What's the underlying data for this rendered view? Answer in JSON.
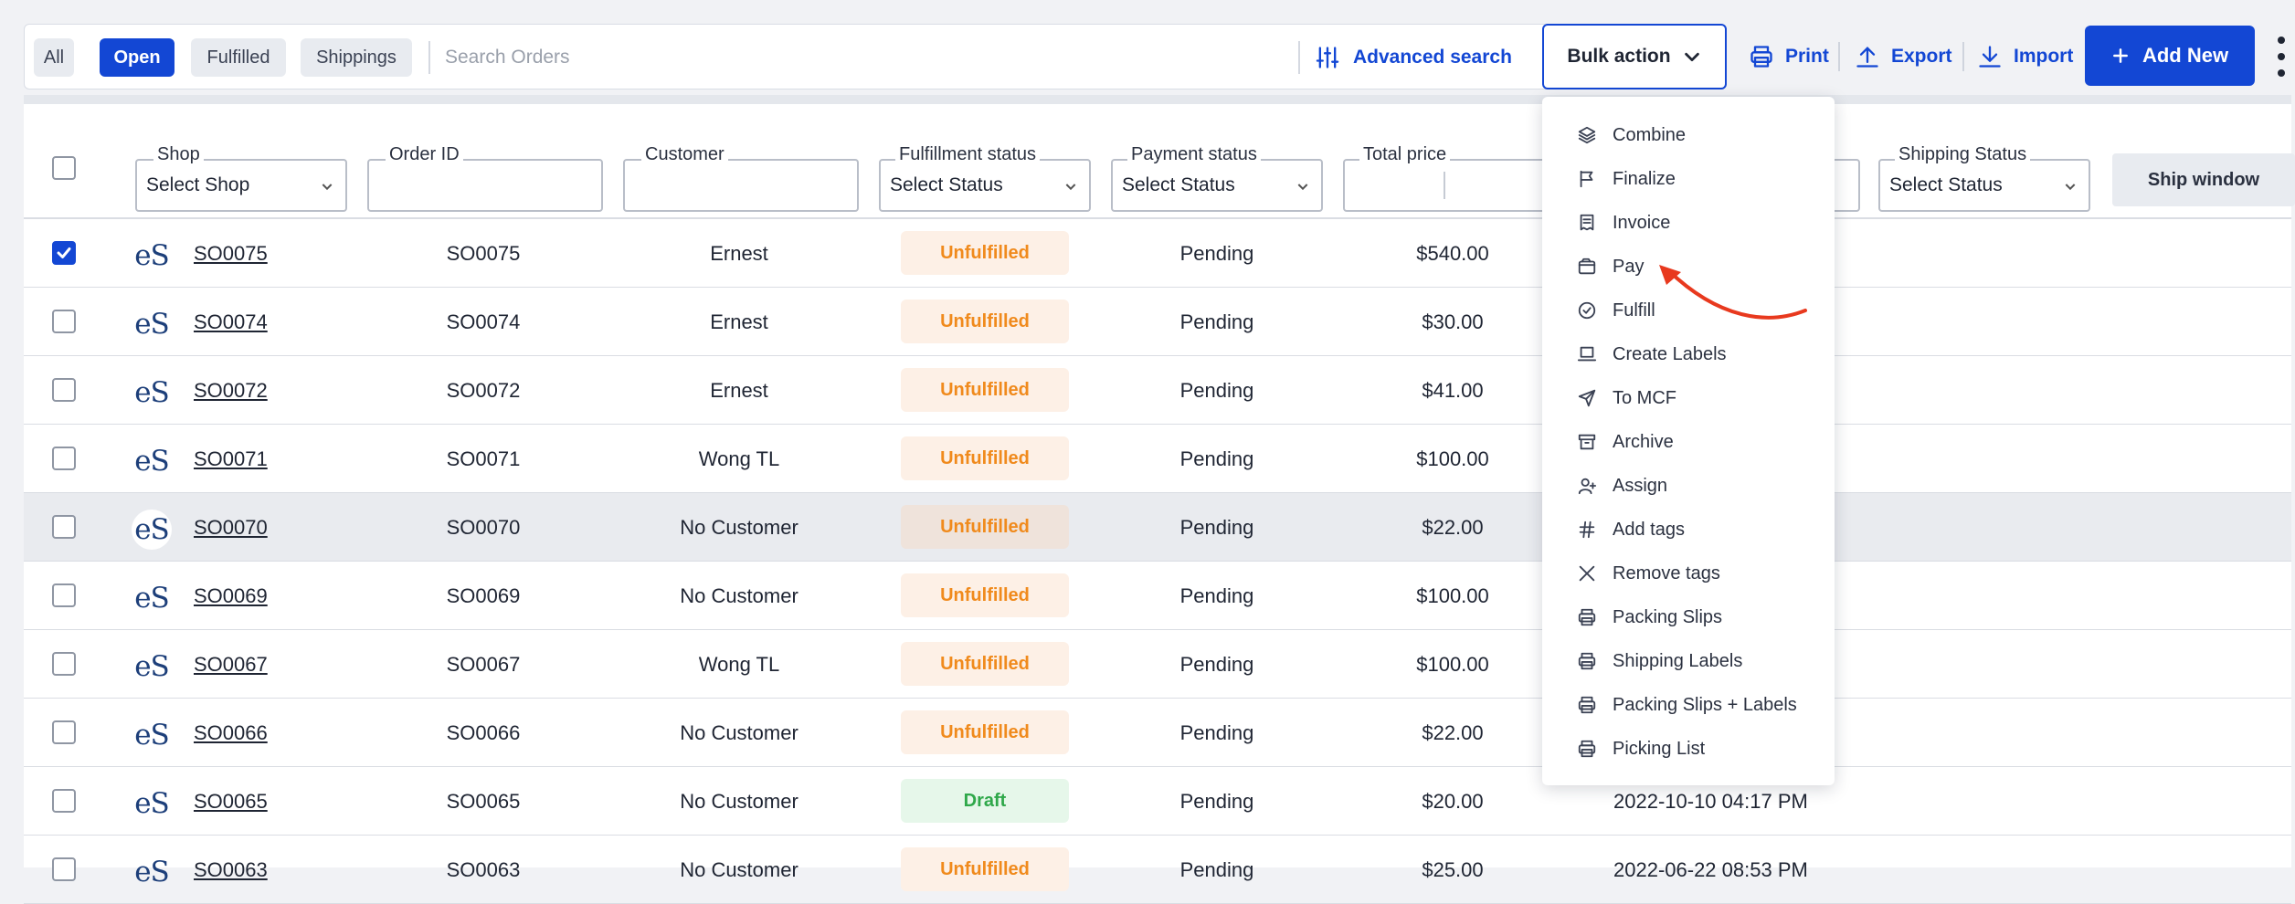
{
  "colors": {
    "accent": "#1347d4",
    "unfulfilled": "#f08a1c",
    "draft": "#2fa84a",
    "annotation": "#e8391e"
  },
  "toolbar": {
    "filters": [
      {
        "label": "All",
        "active": false
      },
      {
        "label": "Open",
        "active": true
      },
      {
        "label": "Fulfilled",
        "active": false
      },
      {
        "label": "Shippings",
        "active": false
      }
    ],
    "search_placeholder": "Search Orders",
    "advanced_search": "Advanced search",
    "bulk_action": "Bulk action",
    "print": "Print",
    "export": "Export",
    "import": "Import",
    "add_new": "Add New"
  },
  "filters": {
    "shop_label": "Shop",
    "shop_value": "Select Shop",
    "order_id_label": "Order ID",
    "customer_label": "Customer",
    "fulfillment_label": "Fulfillment status",
    "fulfillment_value": "Select Status",
    "payment_label": "Payment status",
    "payment_value": "Select Status",
    "total_label": "Total price",
    "shipping_label": "Shipping Status",
    "shipping_value": "Select Status",
    "ship_window": "Ship window"
  },
  "rows": [
    {
      "link": "SO0075",
      "order_id": "SO0075",
      "customer": "Ernest",
      "fulfillment": "Unfulfilled",
      "payment": "Pending",
      "total": "$540.00",
      "date": "",
      "checked": true
    },
    {
      "link": "SO0074",
      "order_id": "SO0074",
      "customer": "Ernest",
      "fulfillment": "Unfulfilled",
      "payment": "Pending",
      "total": "$30.00",
      "date": "",
      "checked": false
    },
    {
      "link": "SO0072",
      "order_id": "SO0072",
      "customer": "Ernest",
      "fulfillment": "Unfulfilled",
      "payment": "Pending",
      "total": "$41.00",
      "date": "",
      "checked": false
    },
    {
      "link": "SO0071",
      "order_id": "SO0071",
      "customer": "Wong TL",
      "fulfillment": "Unfulfilled",
      "payment": "Pending",
      "total": "$100.00",
      "date": "",
      "checked": false
    },
    {
      "link": "SO0070",
      "order_id": "SO0070",
      "customer": "No Customer",
      "fulfillment": "Unfulfilled",
      "payment": "Pending",
      "total": "$22.00",
      "date": "",
      "checked": false
    },
    {
      "link": "SO0069",
      "order_id": "SO0069",
      "customer": "No Customer",
      "fulfillment": "Unfulfilled",
      "payment": "Pending",
      "total": "$100.00",
      "date": "",
      "checked": false
    },
    {
      "link": "SO0067",
      "order_id": "SO0067",
      "customer": "Wong TL",
      "fulfillment": "Unfulfilled",
      "payment": "Pending",
      "total": "$100.00",
      "date": "",
      "checked": false
    },
    {
      "link": "SO0066",
      "order_id": "SO0066",
      "customer": "No Customer",
      "fulfillment": "Unfulfilled",
      "payment": "Pending",
      "total": "$22.00",
      "date": "",
      "checked": false
    },
    {
      "link": "SO0065",
      "order_id": "SO0065",
      "customer": "No Customer",
      "fulfillment": "Draft",
      "payment": "Pending",
      "total": "$20.00",
      "date": "2022-10-10 04:17 PM",
      "checked": false
    },
    {
      "link": "SO0063",
      "order_id": "SO0063",
      "customer": "No Customer",
      "fulfillment": "Unfulfilled",
      "payment": "Pending",
      "total": "$25.00",
      "date": "2022-06-22 08:53 PM",
      "checked": false
    }
  ],
  "shop_logo_text": "eS",
  "bulk_menu": [
    {
      "label": "Combine",
      "icon": "layers-icon"
    },
    {
      "label": "Finalize",
      "icon": "flag-icon"
    },
    {
      "label": "Invoice",
      "icon": "receipt-icon"
    },
    {
      "label": "Pay",
      "icon": "wallet-icon"
    },
    {
      "label": "Fulfill",
      "icon": "check-circle-icon"
    },
    {
      "label": "Create Labels",
      "icon": "laptop-icon"
    },
    {
      "label": "To MCF",
      "icon": "send-icon"
    },
    {
      "label": "Archive",
      "icon": "archive-icon"
    },
    {
      "label": "Assign",
      "icon": "user-plus-icon"
    },
    {
      "label": "Add tags",
      "icon": "hash-icon"
    },
    {
      "label": "Remove tags",
      "icon": "x-icon"
    },
    {
      "label": "Packing Slips",
      "icon": "printer-icon"
    },
    {
      "label": "Shipping Labels",
      "icon": "printer-icon"
    },
    {
      "label": "Packing Slips + Labels",
      "icon": "printer-icon"
    },
    {
      "label": "Picking List",
      "icon": "printer-icon"
    }
  ]
}
